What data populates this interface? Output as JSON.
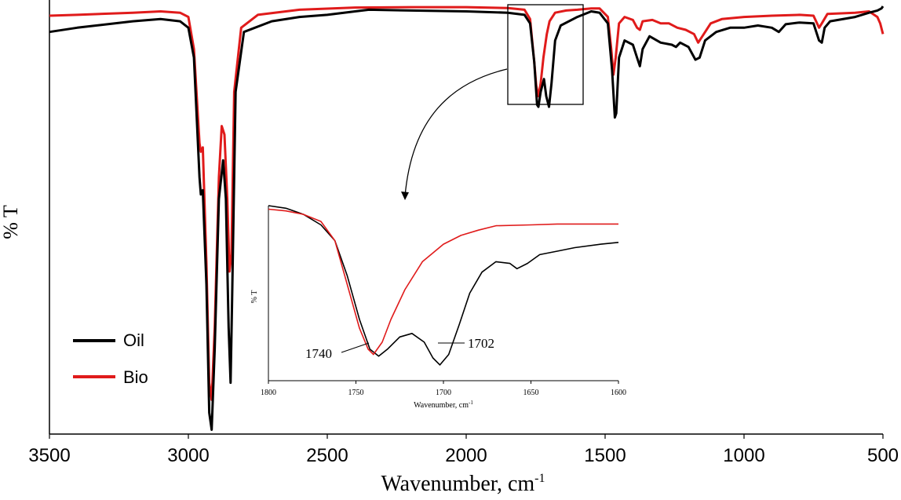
{
  "chart_data": {
    "main": {
      "type": "line",
      "xlabel_main": "Wavenumber, cm",
      "xlabel_sup": "-1",
      "ylabel": "% T",
      "xlim": [
        3500,
        500
      ],
      "x_ticks": [
        {
          "value": 3500,
          "label": "3500"
        },
        {
          "value": 3000,
          "label": "3000"
        },
        {
          "value": 2500,
          "label": "2500"
        },
        {
          "value": 2000,
          "label": "2000"
        },
        {
          "value": 1500,
          "label": "1500"
        },
        {
          "value": 1000,
          "label": "1000"
        },
        {
          "value": 500,
          "label": "500"
        }
      ],
      "series": [
        {
          "name": "Oil",
          "color": "#000000",
          "points": [
            [
              3500,
              94.0
            ],
            [
              3400,
              95.0
            ],
            [
              3200,
              96.5
            ],
            [
              3100,
              97.0
            ],
            [
              3030,
              96.5
            ],
            [
              3000,
              95.0
            ],
            [
              2980,
              88.0
            ],
            [
              2960,
              60.0
            ],
            [
              2955,
              56.0
            ],
            [
              2948,
              57.0
            ],
            [
              2935,
              35.0
            ],
            [
              2925,
              5.0
            ],
            [
              2916,
              1.0
            ],
            [
              2905,
              20.0
            ],
            [
              2890,
              55.0
            ],
            [
              2875,
              64.0
            ],
            [
              2865,
              55.0
            ],
            [
              2855,
              25.0
            ],
            [
              2848,
              12.0
            ],
            [
              2843,
              30.0
            ],
            [
              2830,
              80.0
            ],
            [
              2800,
              94.0
            ],
            [
              2700,
              96.5
            ],
            [
              2600,
              97.5
            ],
            [
              2500,
              98.0
            ],
            [
              2400,
              98.8
            ],
            [
              2350,
              99.2
            ],
            [
              2200,
              99.0
            ],
            [
              2000,
              98.8
            ],
            [
              1850,
              98.5
            ],
            [
              1790,
              98.0
            ],
            [
              1770,
              96.0
            ],
            [
              1755,
              87.0
            ],
            [
              1745,
              77.0
            ],
            [
              1740,
              76.5
            ],
            [
              1732,
              80.0
            ],
            [
              1720,
              83.0
            ],
            [
              1712,
              79.0
            ],
            [
              1702,
              76.5
            ],
            [
              1693,
              82.0
            ],
            [
              1680,
              92.0
            ],
            [
              1660,
              95.5
            ],
            [
              1600,
              97.5
            ],
            [
              1550,
              98.8
            ],
            [
              1520,
              98.5
            ],
            [
              1490,
              96.0
            ],
            [
              1475,
              85.0
            ],
            [
              1465,
              74.0
            ],
            [
              1460,
              75.0
            ],
            [
              1450,
              88.0
            ],
            [
              1430,
              92.0
            ],
            [
              1400,
              91.0
            ],
            [
              1385,
              88.0
            ],
            [
              1375,
              86.0
            ],
            [
              1365,
              90.0
            ],
            [
              1340,
              93.0
            ],
            [
              1300,
              91.5
            ],
            [
              1260,
              91.0
            ],
            [
              1245,
              90.5
            ],
            [
              1230,
              91.5
            ],
            [
              1200,
              90.5
            ],
            [
              1175,
              87.5
            ],
            [
              1160,
              88.0
            ],
            [
              1140,
              92.0
            ],
            [
              1100,
              94.0
            ],
            [
              1050,
              95.0
            ],
            [
              1000,
              95.0
            ],
            [
              950,
              95.5
            ],
            [
              900,
              95.0
            ],
            [
              875,
              94.0
            ],
            [
              850,
              95.8
            ],
            [
              800,
              96.2
            ],
            [
              750,
              96.0
            ],
            [
              730,
              92.0
            ],
            [
              720,
              91.5
            ],
            [
              710,
              95.0
            ],
            [
              690,
              96.5
            ],
            [
              600,
              97.5
            ],
            [
              550,
              98.5
            ],
            [
              520,
              99.0
            ],
            [
              505,
              99.5
            ],
            [
              500,
              100.0
            ]
          ]
        },
        {
          "name": "Bio",
          "color": "#e01b1b",
          "points": [
            [
              3500,
              97.8
            ],
            [
              3400,
              98.0
            ],
            [
              3200,
              98.5
            ],
            [
              3100,
              98.8
            ],
            [
              3030,
              98.5
            ],
            [
              3000,
              97.5
            ],
            [
              2980,
              90.0
            ],
            [
              2960,
              68.0
            ],
            [
              2955,
              66.0
            ],
            [
              2948,
              67.0
            ],
            [
              2935,
              40.0
            ],
            [
              2925,
              12.0
            ],
            [
              2916,
              8.0
            ],
            [
              2905,
              25.0
            ],
            [
              2890,
              60.0
            ],
            [
              2880,
              72.0
            ],
            [
              2870,
              70.0
            ],
            [
              2860,
              55.0
            ],
            [
              2852,
              38.0
            ],
            [
              2845,
              42.0
            ],
            [
              2835,
              80.0
            ],
            [
              2810,
              95.0
            ],
            [
              2750,
              98.0
            ],
            [
              2600,
              99.2
            ],
            [
              2400,
              99.7
            ],
            [
              2200,
              99.8
            ],
            [
              2000,
              99.8
            ],
            [
              1850,
              99.6
            ],
            [
              1790,
              99.2
            ],
            [
              1770,
              97.0
            ],
            [
              1755,
              87.0
            ],
            [
              1748,
              81.5
            ],
            [
              1740,
              79.0
            ],
            [
              1732,
              82.0
            ],
            [
              1722,
              88.0
            ],
            [
              1710,
              93.5
            ],
            [
              1700,
              96.5
            ],
            [
              1680,
              98.5
            ],
            [
              1640,
              99.0
            ],
            [
              1600,
              99.2
            ],
            [
              1550,
              99.5
            ],
            [
              1520,
              99.5
            ],
            [
              1490,
              97.5
            ],
            [
              1478,
              90.0
            ],
            [
              1470,
              84.0
            ],
            [
              1462,
              88.0
            ],
            [
              1450,
              96.0
            ],
            [
              1430,
              97.5
            ],
            [
              1400,
              96.8
            ],
            [
              1385,
              95.0
            ],
            [
              1375,
              94.5
            ],
            [
              1365,
              96.5
            ],
            [
              1330,
              96.8
            ],
            [
              1300,
              96.0
            ],
            [
              1270,
              96.0
            ],
            [
              1240,
              95.0
            ],
            [
              1210,
              94.5
            ],
            [
              1180,
              93.5
            ],
            [
              1165,
              91.5
            ],
            [
              1150,
              93.0
            ],
            [
              1120,
              96.0
            ],
            [
              1080,
              97.0
            ],
            [
              1000,
              97.5
            ],
            [
              900,
              97.8
            ],
            [
              800,
              98.0
            ],
            [
              750,
              97.8
            ],
            [
              730,
              95.0
            ],
            [
              720,
              96.0
            ],
            [
              700,
              98.2
            ],
            [
              600,
              98.5
            ],
            [
              550,
              98.8
            ],
            [
              520,
              97.5
            ],
            [
              510,
              96.0
            ],
            [
              500,
              93.5
            ]
          ]
        }
      ],
      "legend": {
        "placement": "lower-left",
        "entries": [
          "Oil",
          "Bio"
        ]
      }
    },
    "inset": {
      "type": "line",
      "xlabel_main": "Wavenumber, cm",
      "xlabel_sup": "-1",
      "ylabel": "% T",
      "xlim": [
        1800,
        1600
      ],
      "ylim": [
        0,
        100
      ],
      "x_ticks": [
        {
          "value": 1800,
          "label": "1800"
        },
        {
          "value": 1750,
          "label": "1750"
        },
        {
          "value": 1700,
          "label": "1700"
        },
        {
          "value": 1650,
          "label": "1650"
        },
        {
          "value": 1600,
          "label": "1600"
        }
      ],
      "series": [
        {
          "name": "Oil",
          "color": "#000000",
          "points": [
            [
              1800,
              100
            ],
            [
              1790,
              98.5
            ],
            [
              1780,
              95
            ],
            [
              1770,
              89
            ],
            [
              1762,
              80
            ],
            [
              1755,
              60
            ],
            [
              1748,
              35
            ],
            [
              1742,
              18
            ],
            [
              1737,
              14
            ],
            [
              1732,
              18
            ],
            [
              1725,
              25
            ],
            [
              1718,
              27
            ],
            [
              1711,
              22
            ],
            [
              1706,
              13
            ],
            [
              1702,
              9
            ],
            [
              1697,
              15
            ],
            [
              1691,
              32
            ],
            [
              1685,
              50
            ],
            [
              1678,
              62
            ],
            [
              1670,
              68
            ],
            [
              1662,
              67
            ],
            [
              1658,
              64
            ],
            [
              1652,
              67
            ],
            [
              1645,
              72
            ],
            [
              1635,
              74
            ],
            [
              1625,
              76
            ],
            [
              1610,
              78
            ],
            [
              1600,
              79
            ]
          ]
        },
        {
          "name": "Bio",
          "color": "#e01b1b",
          "points": [
            [
              1800,
              98
            ],
            [
              1790,
              97
            ],
            [
              1780,
              95
            ],
            [
              1770,
              91
            ],
            [
              1762,
              80
            ],
            [
              1755,
              55
            ],
            [
              1748,
              30
            ],
            [
              1743,
              18
            ],
            [
              1740,
              15
            ],
            [
              1735,
              22
            ],
            [
              1730,
              35
            ],
            [
              1722,
              52
            ],
            [
              1712,
              68
            ],
            [
              1700,
              78
            ],
            [
              1690,
              83
            ],
            [
              1680,
              86
            ],
            [
              1670,
              88.5
            ],
            [
              1650,
              89
            ],
            [
              1635,
              89.5
            ],
            [
              1620,
              89.5
            ],
            [
              1600,
              89.5
            ]
          ]
        }
      ],
      "annotations": [
        {
          "text": "1740",
          "x": 1740,
          "y": 14
        },
        {
          "text": "1702",
          "x": 1702,
          "y": 9
        }
      ]
    }
  }
}
